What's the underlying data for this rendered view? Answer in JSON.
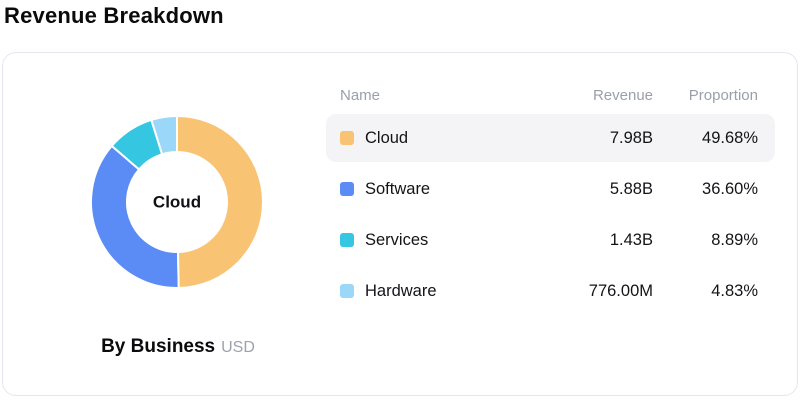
{
  "page": {
    "title": "Revenue Breakdown"
  },
  "card": {
    "caption": {
      "title": "By Business",
      "unit": "USD"
    },
    "table": {
      "headers": [
        "Name",
        "Revenue",
        "Proportion"
      ],
      "rows": [
        {
          "name": "Cloud",
          "revenue": "7.98B",
          "proportion": "49.68%",
          "color": "#f9c374",
          "highlighted": true
        },
        {
          "name": "Software",
          "revenue": "5.88B",
          "proportion": "36.60%",
          "color": "#5b8bf4",
          "highlighted": false
        },
        {
          "name": "Services",
          "revenue": "1.43B",
          "proportion": "8.89%",
          "color": "#35c6e2",
          "highlighted": false
        },
        {
          "name": "Hardware",
          "revenue": "776.00M",
          "proportion": "4.83%",
          "color": "#9ad7f9",
          "highlighted": false
        }
      ]
    }
  },
  "chart_data": {
    "type": "pie",
    "title": "Revenue Breakdown",
    "subtitle": "By Business",
    "unit": "USD",
    "center_label": "Cloud",
    "categories": [
      "Cloud",
      "Software",
      "Services",
      "Hardware"
    ],
    "values_percent": [
      49.68,
      36.6,
      8.89,
      4.83
    ],
    "values_revenue": [
      "7.98B",
      "5.88B",
      "1.43B",
      "776.00M"
    ],
    "colors": [
      "#f9c374",
      "#5b8bf4",
      "#35c6e2",
      "#9ad7f9"
    ],
    "start_angle_deg": 0,
    "direction": "clockwise",
    "inner_radius_ratio": 0.58,
    "legend_position": "right",
    "segment_gap_color": "#ffffff"
  }
}
